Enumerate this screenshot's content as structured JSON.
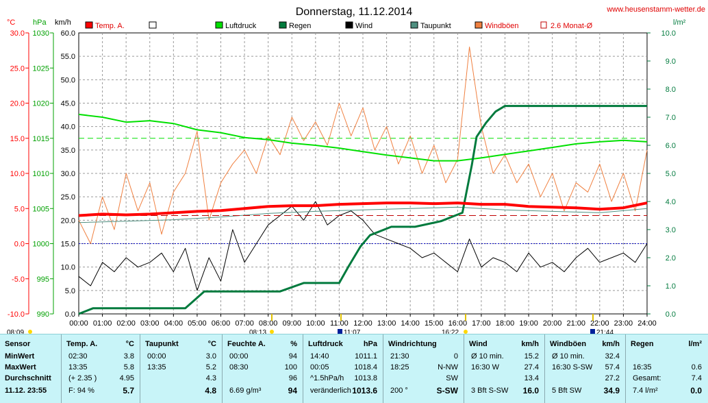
{
  "title": "Donnerstag, 11.12.2014",
  "site": "www.heusenstamm-wetter.de",
  "colors": {
    "temp": "#ff0000",
    "pressure": "#00e000",
    "rain": "#007a3d",
    "wind": "#000000",
    "dew": "#4f8f80",
    "gust": "#f08040",
    "avg": "#c00000",
    "blue": "#0000c0",
    "axisRed": "#ff0000",
    "axisGreen": "#00a000",
    "axisDark": "#007a3d"
  },
  "axes": {
    "temp_unit": "°C",
    "pressure_unit": "hPa",
    "wind_unit": "km/h",
    "rain_unit": "l/m²",
    "temp_ticks": [
      "30.0",
      "25.0",
      "20.0",
      "15.0",
      "10.0",
      "5.0",
      "0.0",
      "-5.0",
      "-10.0"
    ],
    "pressure_ticks": [
      "1030",
      "1025",
      "1020",
      "1015",
      "1010",
      "1005",
      "1000",
      "995",
      "990"
    ],
    "wind_ticks": [
      "60.0",
      "55.0",
      "50.0",
      "45.0",
      "40.0",
      "35.0",
      "30.0",
      "25.0",
      "20.0",
      "15.0",
      "10.0",
      "5.0",
      "0.0"
    ],
    "rain_ticks": [
      "10.0",
      "9.0",
      "8.0",
      "7.0",
      "6.0",
      "5.0",
      "4.0",
      "3.0",
      "2.0",
      "1.0",
      "0.0"
    ],
    "x_ticks": [
      "00:00",
      "01:00",
      "02:00",
      "03:00",
      "04:00",
      "05:00",
      "06:00",
      "07:00",
      "08:00",
      "09:00",
      "10:00",
      "11:00",
      "12:00",
      "13:00",
      "14:00",
      "15:00",
      "16:00",
      "17:00",
      "18:00",
      "19:00",
      "20:00",
      "21:00",
      "22:00",
      "23:00",
      "24:00"
    ]
  },
  "legend": [
    {
      "label": "Temp. A.",
      "color": "#ff0000",
      "type": "fill"
    },
    {
      "label": "",
      "color": "#ffffff",
      "type": "fill"
    },
    {
      "label": "Luftdruck",
      "color": "#00e000",
      "type": "fill"
    },
    {
      "label": "Regen",
      "color": "#007a3d",
      "type": "fill"
    },
    {
      "label": "Wind",
      "color": "#000000",
      "type": "fill"
    },
    {
      "label": "Taupunkt",
      "color": "#4f8f80",
      "type": "fill"
    },
    {
      "label": "Windböen",
      "color": "#f08040",
      "type": "fill"
    },
    {
      "label": "2.6 Monat-Ø",
      "color": "#c00000",
      "type": "open"
    }
  ],
  "markers": {
    "sunrise_left": "08:09",
    "sunrise": "08:13",
    "noon": "11:07",
    "sunset": "16:22",
    "moon": "21:44"
  },
  "chart_data": {
    "type": "line",
    "x_unit": "hours",
    "xlim": [
      0,
      24
    ],
    "temp_ylim": [
      -10,
      30
    ],
    "pressure_ylim": [
      990,
      1030
    ],
    "wind_ylim": [
      0,
      60
    ],
    "rain_ylim": [
      0,
      10
    ],
    "series": [
      {
        "name": "Temp. A.",
        "axis": "temp",
        "x": [
          0,
          1,
          2,
          3,
          4,
          5,
          6,
          7,
          8,
          9,
          10,
          11,
          12,
          13,
          14,
          15,
          16,
          17,
          18,
          19,
          20,
          21,
          22,
          23,
          24
        ],
        "values": [
          4.0,
          4.2,
          4.1,
          4.2,
          4.4,
          4.6,
          4.7,
          5.0,
          5.3,
          5.4,
          5.4,
          5.6,
          5.7,
          5.8,
          5.8,
          5.7,
          5.8,
          5.6,
          5.6,
          5.3,
          5.2,
          5.1,
          4.9,
          5.1,
          5.8
        ]
      },
      {
        "name": "Taupunkt",
        "axis": "temp",
        "x": [
          0,
          2,
          4,
          6,
          8,
          10,
          12,
          14,
          16,
          18,
          20,
          22,
          24
        ],
        "values": [
          3.0,
          3.2,
          3.4,
          3.8,
          4.3,
          4.6,
          4.8,
          5.0,
          5.2,
          4.8,
          4.6,
          4.4,
          5.0
        ]
      },
      {
        "name": "Luftdruck",
        "axis": "pressure",
        "x": [
          0,
          1,
          2,
          3,
          4,
          5,
          6,
          7,
          8,
          9,
          10,
          11,
          12,
          13,
          14,
          15,
          16,
          17,
          18,
          19,
          20,
          21,
          22,
          23,
          24
        ],
        "values": [
          1018.4,
          1018.0,
          1017.3,
          1017.5,
          1017.1,
          1016.2,
          1015.8,
          1015.1,
          1014.8,
          1014.3,
          1014.0,
          1013.6,
          1013.1,
          1012.6,
          1012.2,
          1011.8,
          1011.8,
          1012.2,
          1012.7,
          1013.2,
          1013.7,
          1014.2,
          1014.5,
          1014.7,
          1014.5
        ]
      },
      {
        "name": "Regen",
        "axis": "rain",
        "x": [
          0,
          0.6,
          4.5,
          4.9,
          5.3,
          8.5,
          9.5,
          11.0,
          11.4,
          11.9,
          12.3,
          13.2,
          14.2,
          15.3,
          16.2,
          16.6,
          16.8,
          17.2,
          17.6,
          18.0,
          18.3,
          24
        ],
        "values": [
          0.0,
          0.2,
          0.2,
          0.5,
          0.8,
          0.8,
          1.1,
          1.1,
          1.7,
          2.4,
          2.8,
          3.1,
          3.1,
          3.3,
          3.6,
          5.3,
          6.3,
          6.8,
          7.2,
          7.4,
          7.4,
          7.4
        ]
      },
      {
        "name": "Wind",
        "axis": "wind",
        "x": [
          0,
          0.5,
          1,
          1.5,
          2,
          2.5,
          3,
          3.5,
          4,
          4.5,
          5,
          5.5,
          6,
          6.5,
          7,
          7.5,
          8,
          8.5,
          9,
          9.5,
          10,
          10.5,
          11,
          11.5,
          12,
          12.5,
          13,
          13.5,
          14,
          14.5,
          15,
          15.5,
          16,
          16.5,
          17,
          17.5,
          18,
          18.5,
          19,
          19.5,
          20,
          20.5,
          21,
          21.5,
          22,
          22.5,
          23,
          23.5,
          24
        ],
        "values": [
          8,
          6,
          11,
          9,
          12,
          10,
          11,
          13,
          9,
          14,
          5,
          12,
          7,
          18,
          11,
          15,
          19,
          21,
          23,
          20,
          24,
          19,
          21,
          22,
          20,
          17,
          16,
          15,
          14,
          12,
          13,
          11,
          9,
          16,
          10,
          12,
          11,
          9,
          13,
          10,
          11,
          9,
          12,
          14,
          11,
          12,
          13,
          11,
          15
        ]
      },
      {
        "name": "Windböen",
        "axis": "wind",
        "x": [
          0,
          0.5,
          1,
          1.5,
          2,
          2.5,
          3,
          3.5,
          4,
          4.5,
          5,
          5.5,
          6,
          6.5,
          7,
          7.5,
          8,
          8.5,
          9,
          9.5,
          10,
          10.5,
          11,
          11.5,
          12,
          12.5,
          13,
          13.5,
          14,
          14.5,
          15,
          15.5,
          16,
          16.5,
          17,
          17.5,
          18,
          18.5,
          19,
          19.5,
          20,
          20.5,
          21,
          21.5,
          22,
          22.5,
          23,
          23.5,
          24
        ],
        "values": [
          20,
          15,
          25,
          18,
          30,
          22,
          28,
          17,
          26,
          30,
          39,
          20,
          28,
          32,
          35,
          30,
          38,
          34,
          42,
          37,
          41,
          36,
          45,
          38,
          44,
          35,
          40,
          32,
          38,
          30,
          36,
          28,
          33,
          57,
          40,
          30,
          34,
          28,
          32,
          25,
          30,
          22,
          28,
          26,
          32,
          24,
          30,
          22,
          35
        ]
      },
      {
        "name": "2.6 Monat-Ø",
        "axis": "temp",
        "x": [
          0,
          24
        ],
        "values": [
          4.0,
          4.0
        ]
      }
    ],
    "pressure_ref": 1015,
    "zero_line": 0
  },
  "table": {
    "cols": [
      {
        "title": "Sensor",
        "unit": "",
        "rows": [
          [
            "MinWert",
            ""
          ],
          [
            "MaxWert",
            ""
          ],
          [
            "Durchschnitt",
            ""
          ],
          [
            "11.12.  23:55",
            ""
          ]
        ]
      },
      {
        "title": "Temp. A.",
        "unit": "°C",
        "rows": [
          [
            "02:30",
            "3.8"
          ],
          [
            "13:35",
            "5.8"
          ],
          [
            "(+ 2.35 )",
            "4.95"
          ],
          [
            "F: 94 %",
            "5.7"
          ]
        ]
      },
      {
        "title": "Taupunkt",
        "unit": "°C",
        "rows": [
          [
            "00:00",
            "3.0"
          ],
          [
            "13:35",
            "5.2"
          ],
          [
            "",
            "4.3"
          ],
          [
            "",
            "4.8"
          ]
        ]
      },
      {
        "title": "Feuchte A.",
        "unit": "%",
        "rows": [
          [
            "00:00",
            "94"
          ],
          [
            "08:30",
            "100"
          ],
          [
            "",
            "96"
          ],
          [
            "6.69 g/m³",
            "94"
          ]
        ]
      },
      {
        "title": "Luftdruck",
        "unit": "hPa",
        "rows": [
          [
            "14:40",
            "1011.1"
          ],
          [
            "00:05",
            "1018.4"
          ],
          [
            "^1.5hPa/h",
            "1013.8"
          ],
          [
            "veränderlich",
            "1013.6"
          ]
        ]
      },
      {
        "title": "Windrichtung",
        "unit": "",
        "rows": [
          [
            "21:30",
            "0"
          ],
          [
            "18:25",
            "N-NW"
          ],
          [
            "",
            "SW"
          ],
          [
            "200 °",
            "S-SW"
          ]
        ]
      },
      {
        "title": "Wind",
        "unit": "km/h",
        "rows": [
          [
            "Ø 10 min.",
            "15.2"
          ],
          [
            "16:30   W",
            "27.4"
          ],
          [
            "",
            "13.4"
          ],
          [
            "3 Bft S-SW",
            "16.0"
          ]
        ]
      },
      {
        "title": "Windböen",
        "unit": "km/h",
        "rows": [
          [
            "Ø 10 min.",
            "32.4"
          ],
          [
            "16:30   S-SW",
            "57.4"
          ],
          [
            "",
            "27.2"
          ],
          [
            "5 Bft SW",
            "34.9"
          ]
        ]
      },
      {
        "title": "Regen",
        "unit": "l/m²",
        "rows": [
          [
            "",
            "",
            ""
          ],
          [
            "16:35",
            "0.6"
          ],
          [
            "Gesamt:",
            "7.4"
          ],
          [
            "7.4 l/m²",
            "0.0"
          ]
        ]
      }
    ]
  }
}
